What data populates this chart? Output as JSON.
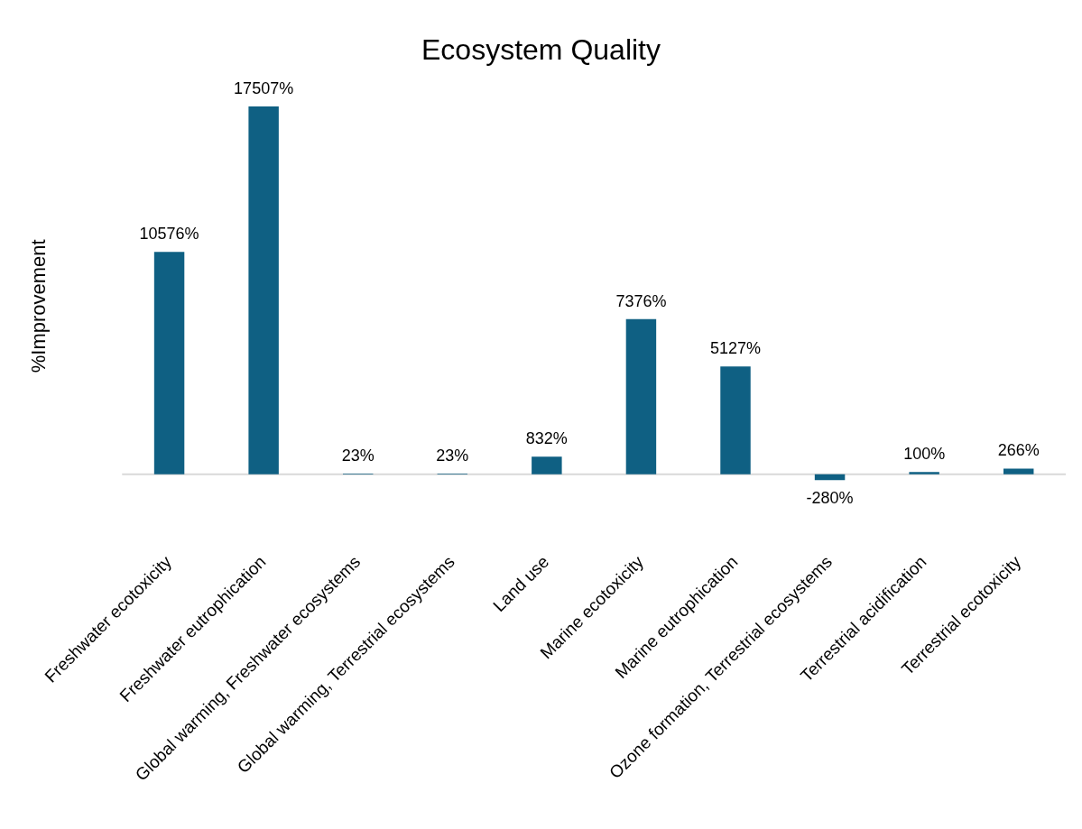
{
  "chart_data": {
    "type": "bar",
    "title": "Ecosystem Quality",
    "ylabel": "%Improvement",
    "categories": [
      "Freshwater ecotoxicity",
      "Freshwater eutrophication",
      "Global warming, Freshwater ecosystems",
      "Global warming, Terrestrial ecosystems",
      "Land use",
      "Marine ecotoxicity",
      "Marine eutrophication",
      "Ozone formation, Terrestrial ecosystems",
      "Terrestrial acidification",
      "Terrestrial ecotoxicity"
    ],
    "values": [
      10576,
      17507,
      23,
      23,
      832,
      7376,
      5127,
      -280,
      100,
      266
    ],
    "value_labels": [
      "10576%",
      "17507%",
      "23%",
      "23%",
      "832%",
      "7376%",
      "5127%",
      "-280%",
      "100%",
      "266%"
    ],
    "color": "#0f6083",
    "tick_labels": "x",
    "grid": false,
    "legend": false
  }
}
